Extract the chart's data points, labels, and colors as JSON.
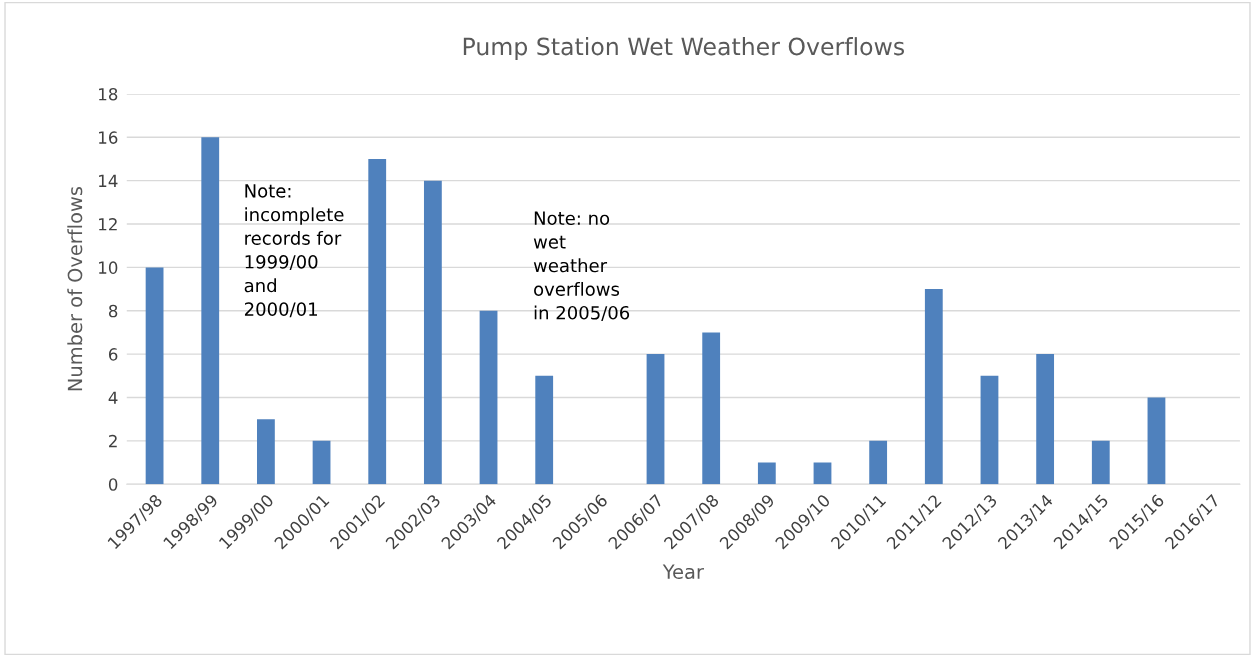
{
  "chart_data": {
    "type": "bar",
    "title": "Pump Station Wet Weather Overflows",
    "xlabel": "Year",
    "ylabel": "Number of Overflows",
    "categories": [
      "1997/98",
      "1998/99",
      "1999/00",
      "2000/01",
      "2001/02",
      "2002/03",
      "2003/04",
      "2004/05",
      "2005/06",
      "2006/07",
      "2007/08",
      "2008/09",
      "2009/10",
      "2010/11",
      "2011/12",
      "2012/13",
      "2013/14",
      "2014/15",
      "2015/16",
      "2016/17"
    ],
    "values": [
      10,
      16,
      3,
      2,
      15,
      14,
      8,
      5,
      0,
      6,
      7,
      1,
      1,
      2,
      9,
      5,
      6,
      2,
      4,
      null
    ],
    "color": "#4f81bd",
    "ylim": [
      0,
      18
    ],
    "yticks": [
      0,
      2,
      4,
      6,
      8,
      10,
      12,
      14,
      16,
      18
    ],
    "grid": "y",
    "legend": false,
    "annotations": [
      "Note:\nincomplete\nrecords for\n1999/00\nand\n2000/01",
      "Note: no\nwet\nweather\noverflows\nin 2005/06"
    ]
  }
}
